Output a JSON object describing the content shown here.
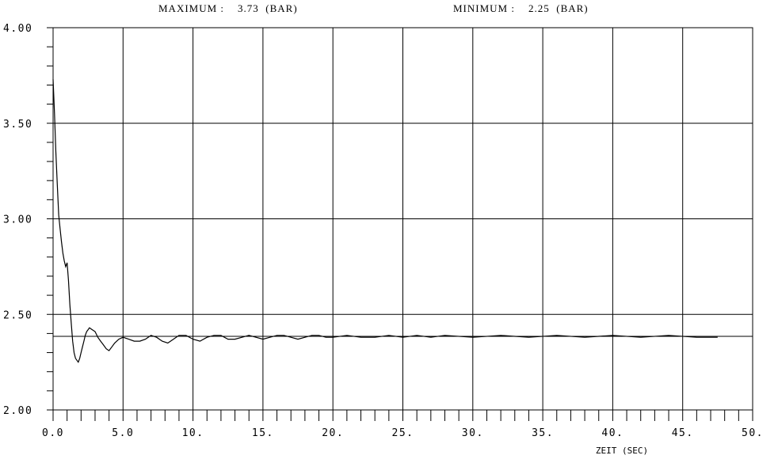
{
  "header": {
    "max_label": "MAXIMUM :",
    "max_value": "3.73",
    "max_unit": "(BAR)",
    "min_label": "MINIMUM :",
    "min_value": "2.25",
    "min_unit": "(BAR)"
  },
  "chart_data": {
    "type": "line",
    "title": "",
    "xlabel": "ZEIT (SEC)",
    "ylabel": "",
    "xlim": [
      0,
      50
    ],
    "ylim": [
      2.0,
      4.0
    ],
    "grid": true,
    "x_ticks": [
      0,
      5,
      10,
      15,
      20,
      25,
      30,
      35,
      40,
      45,
      50
    ],
    "x_tick_labels": [
      "0.0",
      "5.0",
      "10.",
      "15.",
      "20.",
      "25.",
      "30.",
      "35.",
      "40.",
      "45.",
      "50."
    ],
    "y_ticks": [
      2.0,
      2.5,
      3.0,
      3.5,
      4.0
    ],
    "y_tick_labels": [
      "2.00",
      "2.50",
      "3.00",
      "3.50",
      "4.00"
    ],
    "series": [
      {
        "x": [
          0.0,
          0.1,
          0.2,
          0.3,
          0.4,
          0.5,
          0.6,
          0.7,
          0.8,
          0.9,
          1.0,
          1.1,
          1.2,
          1.3,
          1.4,
          1.5,
          1.6,
          1.7,
          1.8,
          1.9,
          2.0,
          2.1,
          2.2,
          2.3,
          2.4,
          2.5,
          2.6,
          2.8,
          3.0,
          3.2,
          3.4,
          3.6,
          3.8,
          4.0,
          4.2,
          4.4,
          4.7,
          5.0,
          5.4,
          5.8,
          6.2,
          6.6,
          7.0,
          7.4,
          7.8,
          8.2,
          8.6,
          9.0,
          9.5,
          10.0,
          10.5,
          11.0,
          11.5,
          12.0,
          12.5,
          13.0,
          13.5,
          14.0,
          14.5,
          15.0,
          15.5,
          16.0,
          16.5,
          17.0,
          17.5,
          18.0,
          18.5,
          19.0,
          19.5,
          20.0,
          21.0,
          22.0,
          23.0,
          24.0,
          25.0,
          26.0,
          27.0,
          28.0,
          30.0,
          32.0,
          34.0,
          36.0,
          38.0,
          40.0,
          42.0,
          44.0,
          46.0,
          47.5
        ],
        "y": [
          3.73,
          3.55,
          3.35,
          3.18,
          3.02,
          2.95,
          2.88,
          2.82,
          2.78,
          2.75,
          2.77,
          2.68,
          2.55,
          2.45,
          2.36,
          2.3,
          2.27,
          2.26,
          2.25,
          2.27,
          2.3,
          2.33,
          2.36,
          2.39,
          2.41,
          2.42,
          2.43,
          2.42,
          2.41,
          2.38,
          2.36,
          2.34,
          2.32,
          2.31,
          2.33,
          2.35,
          2.37,
          2.38,
          2.37,
          2.36,
          2.36,
          2.37,
          2.39,
          2.38,
          2.36,
          2.35,
          2.37,
          2.39,
          2.39,
          2.37,
          2.36,
          2.38,
          2.39,
          2.39,
          2.37,
          2.37,
          2.38,
          2.39,
          2.38,
          2.37,
          2.38,
          2.39,
          2.39,
          2.38,
          2.37,
          2.38,
          2.39,
          2.39,
          2.38,
          2.38,
          2.39,
          2.38,
          2.38,
          2.39,
          2.38,
          2.39,
          2.38,
          2.39,
          2.38,
          2.39,
          2.38,
          2.39,
          2.38,
          2.39,
          2.38,
          2.39,
          2.38,
          2.38
        ]
      }
    ],
    "reference_line": 2.385
  }
}
